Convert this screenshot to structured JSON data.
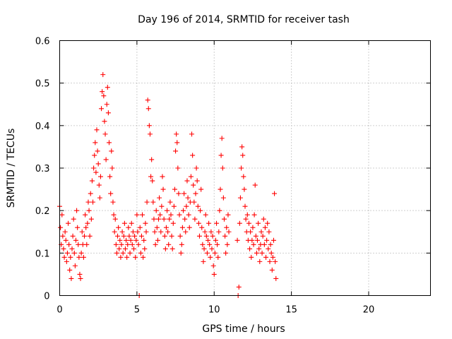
{
  "chart_data": {
    "type": "scatter",
    "title": "Day 196 of 2014, SRMTID for receiver tash",
    "xlabel": "GPS time / hours",
    "ylabel": "SRMTID / TECUs",
    "xlim": [
      0,
      24
    ],
    "ylim": [
      0,
      0.6
    ],
    "xticks": [
      0,
      5,
      10,
      15,
      20
    ],
    "xtick_labels": [
      "0",
      "5",
      "10",
      "15",
      "20"
    ],
    "yticks": [
      0,
      0.1,
      0.2,
      0.3,
      0.4,
      0.5,
      0.6
    ],
    "ytick_labels": [
      "0",
      "0.1",
      "0.2",
      "0.3",
      "0.4",
      "0.5",
      "0.6"
    ],
    "grid": true,
    "marker": "+",
    "color": "#ff0000",
    "series": [
      {
        "name": "SRMTID",
        "points": [
          [
            0.0,
            0.21
          ],
          [
            0.05,
            0.16
          ],
          [
            0.1,
            0.12
          ],
          [
            0.15,
            0.19
          ],
          [
            0.2,
            0.14
          ],
          [
            0.25,
            0.11
          ],
          [
            0.3,
            0.09
          ],
          [
            0.35,
            0.15
          ],
          [
            0.4,
            0.13
          ],
          [
            0.45,
            0.08
          ],
          [
            0.5,
            0.1
          ],
          [
            0.55,
            0.17
          ],
          [
            0.6,
            0.12
          ],
          [
            0.65,
            0.06
          ],
          [
            0.7,
            0.09
          ],
          [
            0.75,
            0.04
          ],
          [
            0.8,
            0.11
          ],
          [
            0.85,
            0.14
          ],
          [
            0.9,
            0.18
          ],
          [
            0.95,
            0.1
          ],
          [
            1.0,
            0.07
          ],
          [
            1.05,
            0.13
          ],
          [
            1.1,
            0.2
          ],
          [
            1.15,
            0.16
          ],
          [
            1.2,
            0.12
          ],
          [
            1.25,
            0.09
          ],
          [
            1.3,
            0.05
          ],
          [
            1.35,
            0.04
          ],
          [
            1.4,
            0.1
          ],
          [
            1.45,
            0.15
          ],
          [
            1.5,
            0.12
          ],
          [
            1.55,
            0.09
          ],
          [
            1.6,
            0.14
          ],
          [
            1.65,
            0.19
          ],
          [
            1.7,
            0.16
          ],
          [
            1.75,
            0.12
          ],
          [
            1.8,
            0.17
          ],
          [
            1.85,
            0.22
          ],
          [
            1.9,
            0.2
          ],
          [
            1.95,
            0.14
          ],
          [
            2.0,
            0.24
          ],
          [
            2.05,
            0.18
          ],
          [
            2.1,
            0.27
          ],
          [
            2.15,
            0.22
          ],
          [
            2.2,
            0.3
          ],
          [
            2.25,
            0.33
          ],
          [
            2.3,
            0.36
          ],
          [
            2.35,
            0.29
          ],
          [
            2.4,
            0.39
          ],
          [
            2.45,
            0.34
          ],
          [
            2.5,
            0.31
          ],
          [
            2.55,
            0.26
          ],
          [
            2.6,
            0.23
          ],
          [
            2.65,
            0.28
          ],
          [
            2.7,
            0.44
          ],
          [
            2.75,
            0.48
          ],
          [
            2.8,
            0.52
          ],
          [
            2.85,
            0.47
          ],
          [
            2.9,
            0.41
          ],
          [
            2.95,
            0.38
          ],
          [
            3.0,
            0.32
          ],
          [
            3.05,
            0.45
          ],
          [
            3.1,
            0.49
          ],
          [
            3.15,
            0.43
          ],
          [
            3.2,
            0.36
          ],
          [
            3.25,
            0.28
          ],
          [
            3.3,
            0.24
          ],
          [
            3.35,
            0.34
          ],
          [
            3.4,
            0.3
          ],
          [
            3.45,
            0.22
          ],
          [
            3.5,
            0.19
          ],
          [
            3.55,
            0.15
          ],
          [
            3.6,
            0.18
          ],
          [
            3.65,
            0.12
          ],
          [
            3.7,
            0.1
          ],
          [
            3.75,
            0.14
          ],
          [
            3.8,
            0.16
          ],
          [
            3.85,
            0.11
          ],
          [
            3.9,
            0.13
          ],
          [
            3.95,
            0.09
          ],
          [
            4.0,
            0.12
          ],
          [
            4.05,
            0.15
          ],
          [
            4.1,
            0.1
          ],
          [
            4.15,
            0.14
          ],
          [
            4.2,
            0.17
          ],
          [
            4.25,
            0.11
          ],
          [
            4.3,
            0.13
          ],
          [
            4.35,
            0.09
          ],
          [
            4.4,
            0.12
          ],
          [
            4.45,
            0.16
          ],
          [
            4.5,
            0.14
          ],
          [
            4.55,
            0.1
          ],
          [
            4.6,
            0.13
          ],
          [
            4.65,
            0.17
          ],
          [
            4.7,
            0.12
          ],
          [
            4.75,
            0.15
          ],
          [
            4.8,
            0.11
          ],
          [
            4.85,
            0.14
          ],
          [
            4.9,
            0.09
          ],
          [
            4.95,
            0.13
          ],
          [
            5.0,
            0.19
          ],
          [
            5.05,
            0.15
          ],
          [
            5.1,
            0.12
          ],
          [
            5.15,
            0.0
          ],
          [
            5.2,
            0.16
          ],
          [
            5.25,
            0.1
          ],
          [
            5.3,
            0.14
          ],
          [
            5.35,
            0.19
          ],
          [
            5.4,
            0.09
          ],
          [
            5.45,
            0.13
          ],
          [
            5.5,
            0.11
          ],
          [
            5.55,
            0.17
          ],
          [
            5.6,
            0.15
          ],
          [
            5.65,
            0.22
          ],
          [
            5.7,
            0.46
          ],
          [
            5.75,
            0.44
          ],
          [
            5.8,
            0.4
          ],
          [
            5.85,
            0.38
          ],
          [
            5.9,
            0.28
          ],
          [
            5.95,
            0.32
          ],
          [
            6.0,
            0.27
          ],
          [
            6.05,
            0.22
          ],
          [
            6.1,
            0.18
          ],
          [
            6.15,
            0.15
          ],
          [
            6.2,
            0.12
          ],
          [
            6.25,
            0.2
          ],
          [
            6.3,
            0.16
          ],
          [
            6.35,
            0.13
          ],
          [
            6.4,
            0.18
          ],
          [
            6.45,
            0.23
          ],
          [
            6.5,
            0.19
          ],
          [
            6.55,
            0.15
          ],
          [
            6.6,
            0.21
          ],
          [
            6.65,
            0.28
          ],
          [
            6.7,
            0.25
          ],
          [
            6.75,
            0.18
          ],
          [
            6.8,
            0.14
          ],
          [
            6.85,
            0.11
          ],
          [
            6.9,
            0.16
          ],
          [
            6.95,
            0.2
          ],
          [
            7.0,
            0.15
          ],
          [
            7.05,
            0.12
          ],
          [
            7.1,
            0.18
          ],
          [
            7.15,
            0.22
          ],
          [
            7.2,
            0.19
          ],
          [
            7.25,
            0.14
          ],
          [
            7.3,
            0.11
          ],
          [
            7.35,
            0.17
          ],
          [
            7.4,
            0.21
          ],
          [
            7.45,
            0.25
          ],
          [
            7.5,
            0.34
          ],
          [
            7.55,
            0.38
          ],
          [
            7.6,
            0.36
          ],
          [
            7.65,
            0.3
          ],
          [
            7.7,
            0.24
          ],
          [
            7.75,
            0.19
          ],
          [
            7.8,
            0.14
          ],
          [
            7.85,
            0.1
          ],
          [
            7.9,
            0.12
          ],
          [
            7.95,
            0.16
          ],
          [
            8.0,
            0.2
          ],
          [
            8.05,
            0.24
          ],
          [
            8.1,
            0.18
          ],
          [
            8.15,
            0.15
          ],
          [
            8.2,
            0.21
          ],
          [
            8.25,
            0.27
          ],
          [
            8.3,
            0.23
          ],
          [
            8.35,
            0.19
          ],
          [
            8.4,
            0.16
          ],
          [
            8.45,
            0.22
          ],
          [
            8.5,
            0.28
          ],
          [
            8.55,
            0.38
          ],
          [
            8.6,
            0.33
          ],
          [
            8.65,
            0.26
          ],
          [
            8.7,
            0.22
          ],
          [
            8.75,
            0.18
          ],
          [
            8.8,
            0.24
          ],
          [
            8.85,
            0.3
          ],
          [
            8.9,
            0.27
          ],
          [
            8.95,
            0.21
          ],
          [
            9.0,
            0.17
          ],
          [
            9.05,
            0.14
          ],
          [
            9.1,
            0.2
          ],
          [
            9.15,
            0.25
          ],
          [
            9.2,
            0.16
          ],
          [
            9.25,
            0.12
          ],
          [
            9.3,
            0.08
          ],
          [
            9.35,
            0.11
          ],
          [
            9.4,
            0.15
          ],
          [
            9.45,
            0.19
          ],
          [
            9.5,
            0.14
          ],
          [
            9.55,
            0.1
          ],
          [
            9.6,
            0.13
          ],
          [
            9.65,
            0.17
          ],
          [
            9.7,
            0.12
          ],
          [
            9.75,
            0.09
          ],
          [
            9.8,
            0.15
          ],
          [
            9.85,
            0.11
          ],
          [
            9.9,
            0.14
          ],
          [
            9.95,
            0.07
          ],
          [
            10.0,
            0.05
          ],
          [
            10.05,
            0.1
          ],
          [
            10.1,
            0.13
          ],
          [
            10.15,
            0.17
          ],
          [
            10.2,
            0.12
          ],
          [
            10.25,
            0.09
          ],
          [
            10.3,
            0.15
          ],
          [
            10.35,
            0.2
          ],
          [
            10.4,
            0.25
          ],
          [
            10.45,
            0.33
          ],
          [
            10.5,
            0.37
          ],
          [
            10.55,
            0.3
          ],
          [
            10.6,
            0.23
          ],
          [
            10.65,
            0.18
          ],
          [
            10.7,
            0.14
          ],
          [
            10.75,
            0.1
          ],
          [
            10.8,
            0.16
          ],
          [
            10.85,
            0.12
          ],
          [
            10.9,
            0.19
          ],
          [
            10.95,
            0.15
          ],
          [
            11.5,
            0.13
          ],
          [
            11.55,
            0.0
          ],
          [
            11.6,
            0.02
          ],
          [
            11.65,
            0.17
          ],
          [
            11.7,
            0.23
          ],
          [
            11.75,
            0.3
          ],
          [
            11.8,
            0.35
          ],
          [
            11.85,
            0.33
          ],
          [
            11.9,
            0.28
          ],
          [
            11.95,
            0.25
          ],
          [
            12.0,
            0.21
          ],
          [
            12.05,
            0.18
          ],
          [
            12.1,
            0.15
          ],
          [
            12.15,
            0.19
          ],
          [
            12.2,
            0.13
          ],
          [
            12.25,
            0.17
          ],
          [
            12.3,
            0.11
          ],
          [
            12.35,
            0.15
          ],
          [
            12.4,
            0.09
          ],
          [
            12.45,
            0.13
          ],
          [
            12.5,
            0.16
          ],
          [
            12.55,
            0.12
          ],
          [
            12.6,
            0.19
          ],
          [
            12.65,
            0.26
          ],
          [
            12.7,
            0.14
          ],
          [
            12.75,
            0.1
          ],
          [
            12.8,
            0.13
          ],
          [
            12.85,
            0.17
          ],
          [
            12.9,
            0.11
          ],
          [
            12.95,
            0.08
          ],
          [
            13.0,
            0.12
          ],
          [
            13.05,
            0.15
          ],
          [
            13.1,
            0.1
          ],
          [
            13.15,
            0.14
          ],
          [
            13.2,
            0.18
          ],
          [
            13.25,
            0.12
          ],
          [
            13.3,
            0.16
          ],
          [
            13.35,
            0.09
          ],
          [
            13.4,
            0.13
          ],
          [
            13.45,
            0.17
          ],
          [
            13.5,
            0.11
          ],
          [
            13.55,
            0.15
          ],
          [
            13.6,
            0.08
          ],
          [
            13.65,
            0.12
          ],
          [
            13.7,
            0.1
          ],
          [
            13.75,
            0.06
          ],
          [
            13.8,
            0.09
          ],
          [
            13.85,
            0.13
          ],
          [
            13.9,
            0.24
          ],
          [
            13.95,
            0.08
          ],
          [
            14.0,
            0.04
          ]
        ]
      }
    ]
  }
}
